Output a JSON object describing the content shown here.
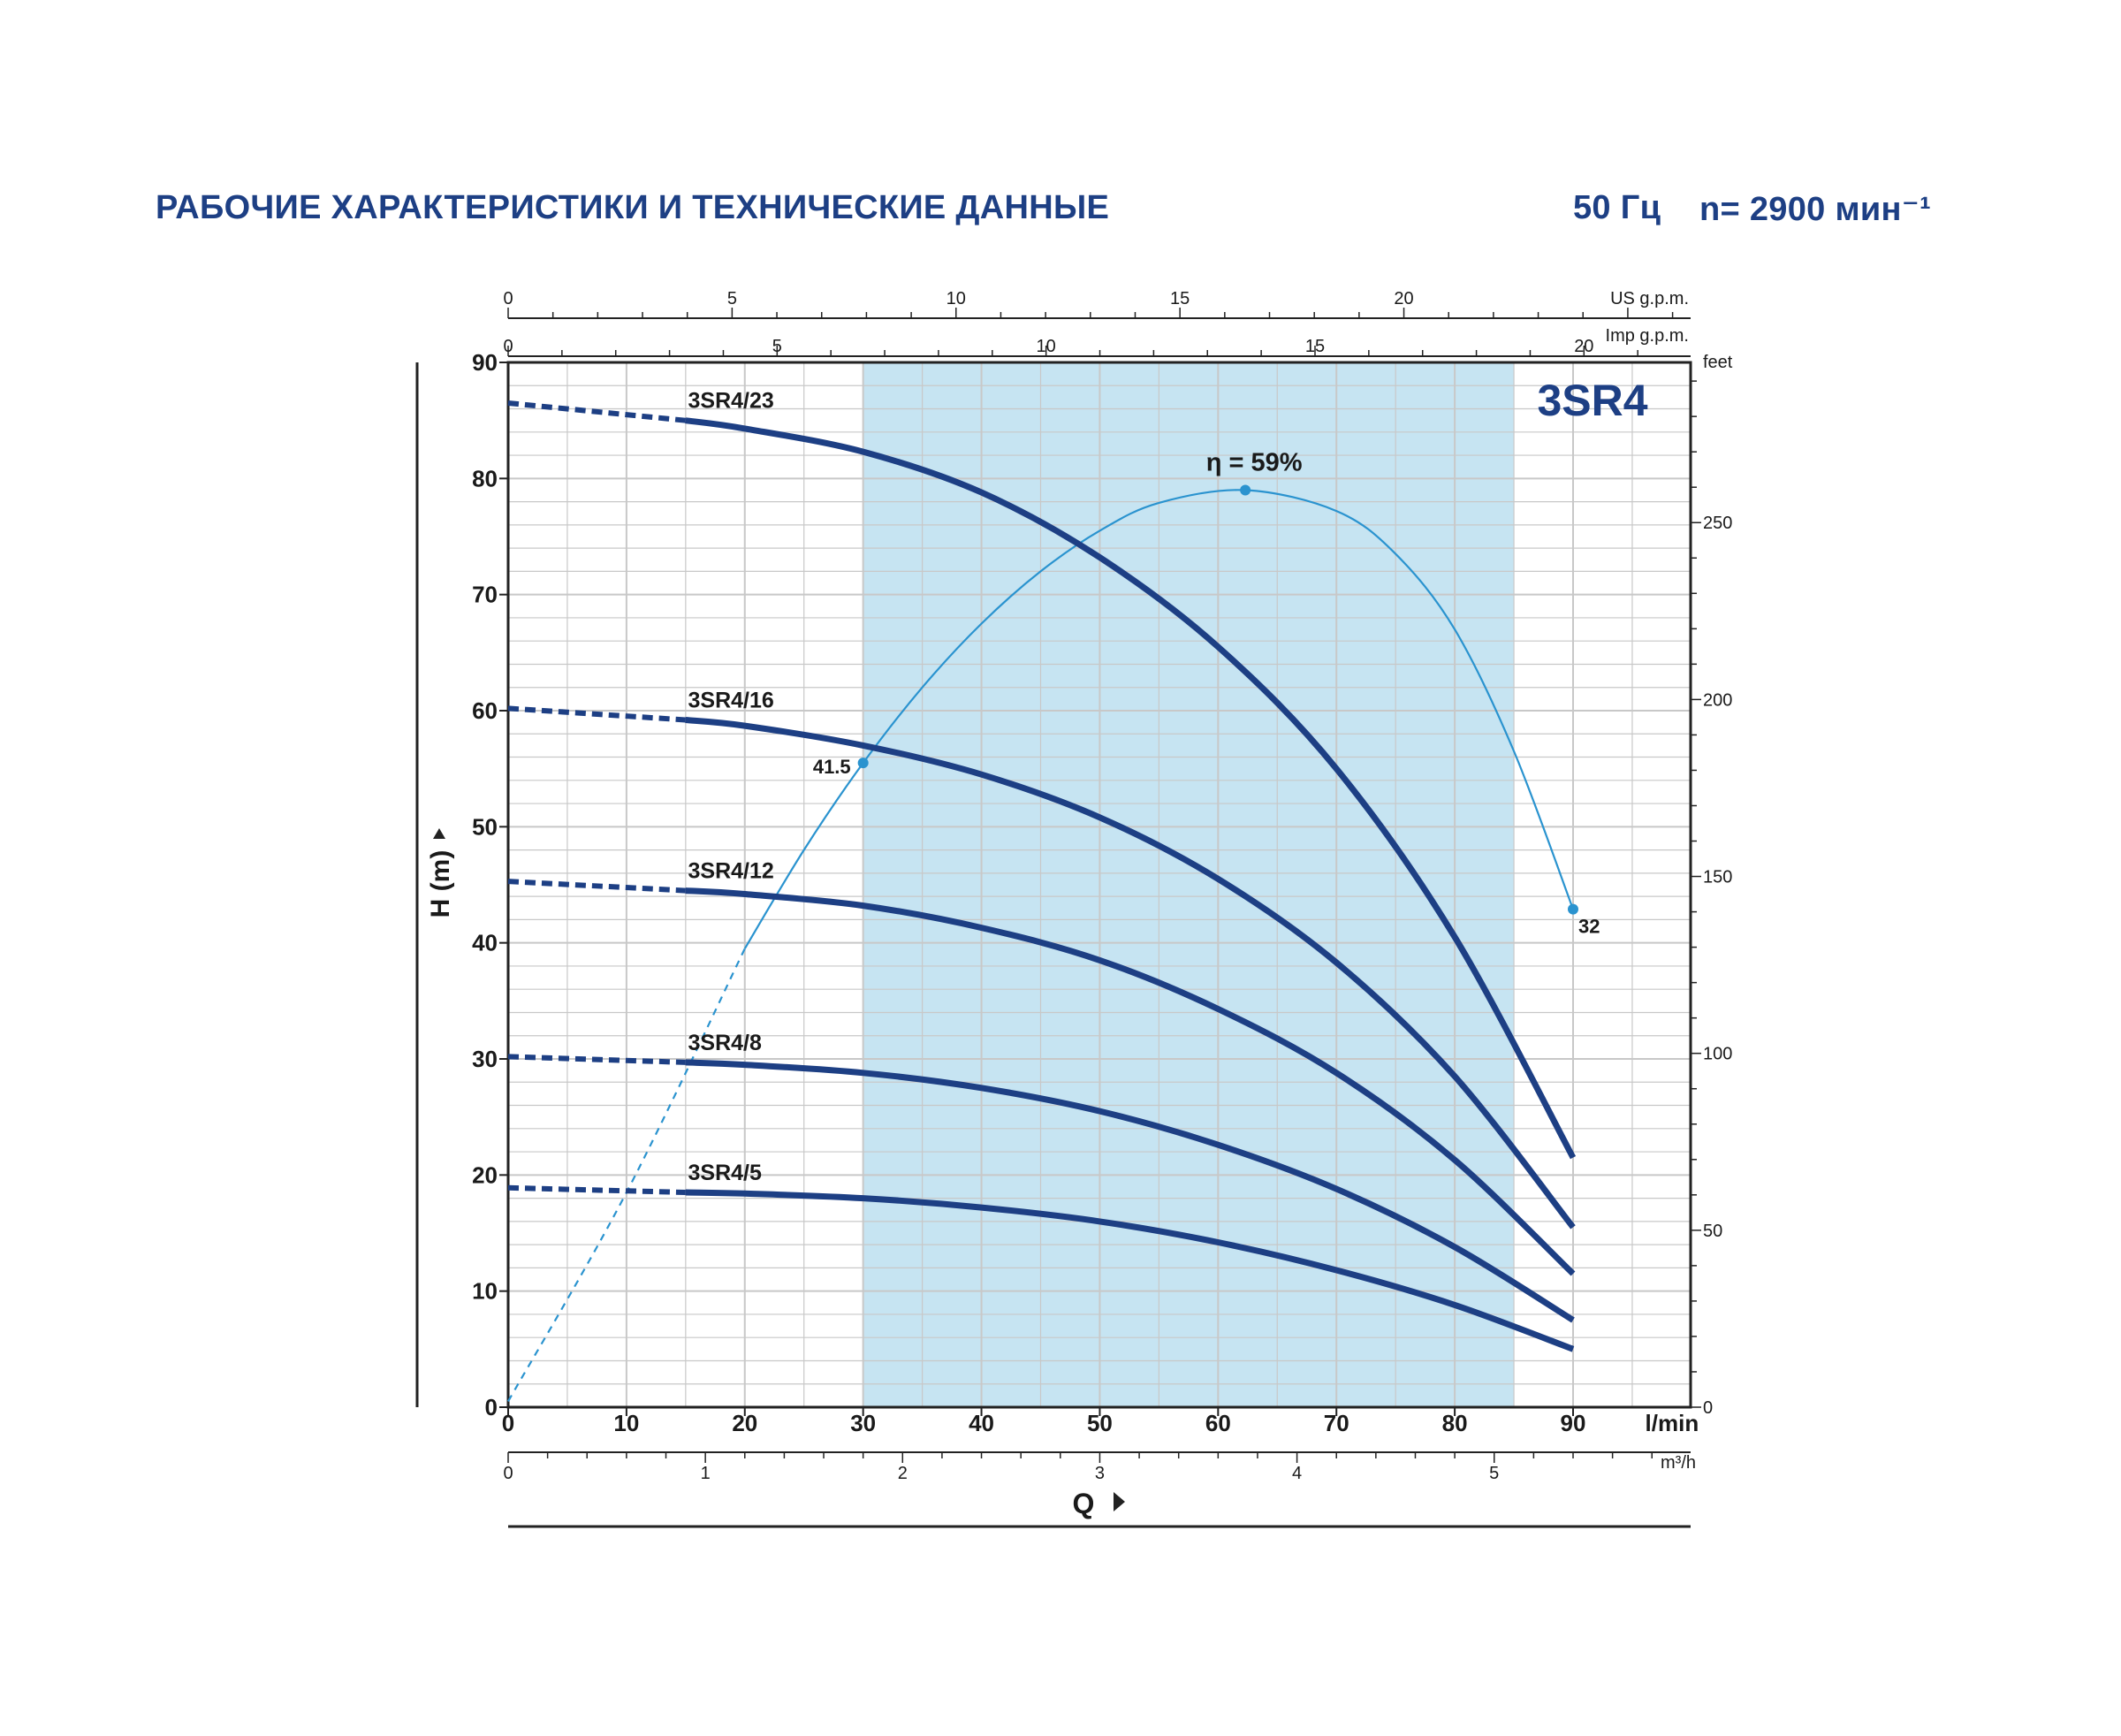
{
  "header": {
    "title": "РАБОЧИЕ ХАРАКТЕРИСТИКИ И ТЕХНИЧЕСКИЕ ДАННЫЕ",
    "frequency": "50 Гц",
    "speed": "n= 2900 мин⁻¹"
  },
  "colors": {
    "curve": "#1d3f84",
    "efficiency": "#2a93cf",
    "band": "#c6e4f2",
    "grid": "#c8c8c8",
    "text": "#1a1a1a"
  },
  "chart_data": {
    "type": "line",
    "model": "3SR4",
    "x": {
      "label": "Q",
      "unit": "l/min",
      "range": [
        0,
        100
      ],
      "ticks": [
        0,
        10,
        20,
        30,
        40,
        50,
        60,
        70,
        80,
        90
      ]
    },
    "y": {
      "label": "H  (m)",
      "range": [
        0,
        90
      ],
      "ticks": [
        0,
        10,
        20,
        30,
        40,
        50,
        60,
        70,
        80,
        90
      ]
    },
    "secondary_axes": {
      "us_gpm": {
        "label": "US g.p.m.",
        "ticks": [
          0,
          5,
          10,
          15,
          20
        ]
      },
      "imp_gpm": {
        "label": "Imp g.p.m.",
        "ticks": [
          0,
          5,
          10,
          15,
          20
        ]
      },
      "m3h": {
        "label": "m³/h",
        "ticks": [
          0,
          1,
          2,
          3,
          4,
          5
        ]
      },
      "feet": {
        "label": "feet",
        "ticks": [
          0,
          50,
          100,
          150,
          200,
          250
        ]
      }
    },
    "recommended_range": [
      30,
      85
    ],
    "series": [
      {
        "name": "3SR4/23",
        "dashed": [
          [
            0,
            86.5
          ],
          [
            15,
            85
          ]
        ],
        "points": [
          [
            15,
            85
          ],
          [
            20,
            84.3
          ],
          [
            30,
            82.3
          ],
          [
            40,
            78.8
          ],
          [
            50,
            73.2
          ],
          [
            60,
            65.5
          ],
          [
            70,
            55
          ],
          [
            80,
            40.5
          ],
          [
            90,
            21.5
          ]
        ]
      },
      {
        "name": "3SR4/16",
        "dashed": [
          [
            0,
            60.2
          ],
          [
            15,
            59.2
          ]
        ],
        "points": [
          [
            15,
            59.2
          ],
          [
            20,
            58.7
          ],
          [
            30,
            57
          ],
          [
            40,
            54.5
          ],
          [
            50,
            50.8
          ],
          [
            60,
            45.5
          ],
          [
            70,
            38.3
          ],
          [
            80,
            28.5
          ],
          [
            90,
            15.5
          ]
        ]
      },
      {
        "name": "3SR4/12",
        "dashed": [
          [
            0,
            45.3
          ],
          [
            15,
            44.5
          ]
        ],
        "points": [
          [
            15,
            44.5
          ],
          [
            20,
            44.2
          ],
          [
            30,
            43.2
          ],
          [
            40,
            41.3
          ],
          [
            50,
            38.5
          ],
          [
            60,
            34.3
          ],
          [
            70,
            28.8
          ],
          [
            80,
            21.3
          ],
          [
            90,
            11.5
          ]
        ]
      },
      {
        "name": "3SR4/8",
        "dashed": [
          [
            0,
            30.2
          ],
          [
            15,
            29.7
          ]
        ],
        "points": [
          [
            15,
            29.7
          ],
          [
            20,
            29.5
          ],
          [
            30,
            28.8
          ],
          [
            40,
            27.5
          ],
          [
            50,
            25.5
          ],
          [
            60,
            22.6
          ],
          [
            70,
            18.8
          ],
          [
            80,
            13.8
          ],
          [
            90,
            7.5
          ]
        ]
      },
      {
        "name": "3SR4/5",
        "dashed": [
          [
            0,
            18.9
          ],
          [
            15,
            18.5
          ]
        ],
        "points": [
          [
            15,
            18.5
          ],
          [
            20,
            18.4
          ],
          [
            30,
            18
          ],
          [
            40,
            17.2
          ],
          [
            50,
            16
          ],
          [
            60,
            14.2
          ],
          [
            70,
            11.8
          ],
          [
            80,
            8.8
          ],
          [
            90,
            5
          ]
        ]
      }
    ],
    "efficiency": {
      "label": "η = 59%",
      "dashed": [
        [
          0,
          0.5
        ],
        [
          10,
          18.5
        ],
        [
          20,
          39.5
        ]
      ],
      "points": [
        [
          20,
          39.5
        ],
        [
          25,
          48
        ],
        [
          30,
          55.5
        ],
        [
          35,
          62
        ],
        [
          40,
          67.5
        ],
        [
          45,
          72
        ],
        [
          50,
          75.5
        ],
        [
          55,
          77.9
        ],
        [
          62.3,
          79
        ],
        [
          70,
          77.2
        ],
        [
          75,
          73.5
        ],
        [
          80,
          67
        ],
        [
          85,
          56.5
        ],
        [
          90,
          42.9
        ]
      ],
      "markers": [
        {
          "x": 30,
          "y": 55.5,
          "label": "41.5"
        },
        {
          "x": 62.3,
          "y": 79,
          "label": ""
        },
        {
          "x": 90,
          "y": 42.9,
          "label": "32"
        }
      ]
    }
  }
}
